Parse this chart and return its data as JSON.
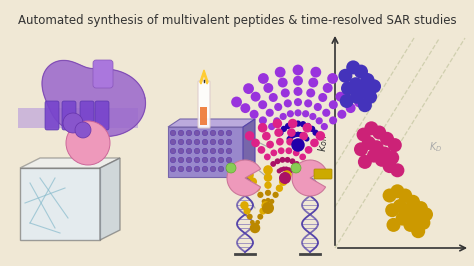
{
  "bg_color": "#f0e8d5",
  "title": "Automated synthesis of multivalent peptides & time-resolved SAR studies",
  "title_fontsize": 8.5,
  "title_color": "#333333",
  "scatter": {
    "blue_dots": {
      "x": [
        0.08,
        0.14,
        0.2,
        0.25,
        0.3,
        0.1,
        0.16,
        0.22,
        0.27,
        0.09,
        0.17,
        0.23
      ],
      "y": [
        0.82,
        0.86,
        0.84,
        0.8,
        0.77,
        0.76,
        0.78,
        0.75,
        0.72,
        0.7,
        0.72,
        0.68
      ],
      "color": "#4433bb",
      "size": 14
    },
    "purple_dots": {
      "x": [
        0.22,
        0.28,
        0.34,
        0.4,
        0.46,
        0.2,
        0.26,
        0.32,
        0.38,
        0.44,
        0.23,
        0.3,
        0.36,
        0.42,
        0.48
      ],
      "y": [
        0.54,
        0.57,
        0.55,
        0.52,
        0.49,
        0.47,
        0.5,
        0.48,
        0.45,
        0.43,
        0.41,
        0.44,
        0.42,
        0.39,
        0.37
      ],
      "color": "#cc2277",
      "size": 14
    },
    "yellow_dots": {
      "x": [
        0.42,
        0.48,
        0.54,
        0.6,
        0.66,
        0.7,
        0.44,
        0.5,
        0.56,
        0.62,
        0.68,
        0.45,
        0.52,
        0.58,
        0.64
      ],
      "y": [
        0.25,
        0.27,
        0.25,
        0.22,
        0.19,
        0.16,
        0.18,
        0.2,
        0.18,
        0.15,
        0.12,
        0.11,
        0.14,
        0.11,
        0.08
      ],
      "color": "#cc9900",
      "size": 14
    },
    "diag_color": "#ccccaa"
  },
  "fan_purple_color_outer": "#8833cc",
  "fan_purple_color_inner": "#2200bb",
  "fan_magenta_color": "#cc2266",
  "fan_yellow_color": "#ccaa00",
  "protein_color": "#9966cc",
  "protein_pink": "#e899aa",
  "dna_color": "#5544aa",
  "crystal_edge": "#555555",
  "crystal_face": "#cceeff",
  "plate_color": "#9988cc"
}
